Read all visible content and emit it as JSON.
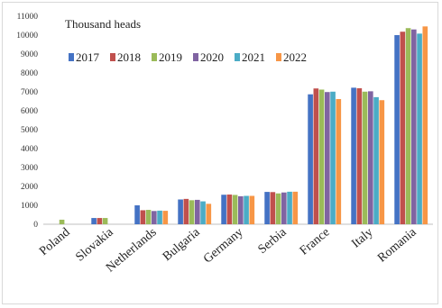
{
  "chart_data": {
    "type": "bar",
    "title": "",
    "unit_label": "Thousand heads",
    "xlabel": "",
    "ylabel": "",
    "ylim": [
      0,
      11000
    ],
    "y_ticks": [
      0,
      1000,
      2000,
      3000,
      4000,
      5000,
      6000,
      7000,
      8000,
      9000,
      10000,
      11000
    ],
    "grid": false,
    "legend_position": "top-left",
    "categories": [
      "Poland",
      "Slovakia",
      "Netherlands",
      "Bulgaria",
      "Germany",
      "Serbia",
      "France",
      "Italy",
      "Romania"
    ],
    "series": [
      {
        "name": "2017",
        "color": "#4472C4",
        "values": [
          0,
          330,
          1000,
          1310,
          1560,
          1710,
          6870,
          7220,
          10000
        ]
      },
      {
        "name": "2018",
        "color": "#C0504D",
        "values": [
          0,
          330,
          740,
          1340,
          1570,
          1700,
          7180,
          7190,
          10180
        ]
      },
      {
        "name": "2019",
        "color": "#9BBB59",
        "values": [
          240,
          330,
          760,
          1270,
          1550,
          1630,
          7120,
          7010,
          10370
        ]
      },
      {
        "name": "2020",
        "color": "#8064A2",
        "values": [
          0,
          0,
          700,
          1290,
          1480,
          1680,
          6990,
          7030,
          10300
        ]
      },
      {
        "name": "2021",
        "color": "#4BACC6",
        "values": [
          0,
          0,
          720,
          1210,
          1500,
          1720,
          7010,
          6720,
          10080
        ]
      },
      {
        "name": "2022",
        "color": "#F79646",
        "values": [
          0,
          0,
          710,
          1080,
          1500,
          1720,
          6620,
          6560,
          10460
        ]
      }
    ]
  }
}
